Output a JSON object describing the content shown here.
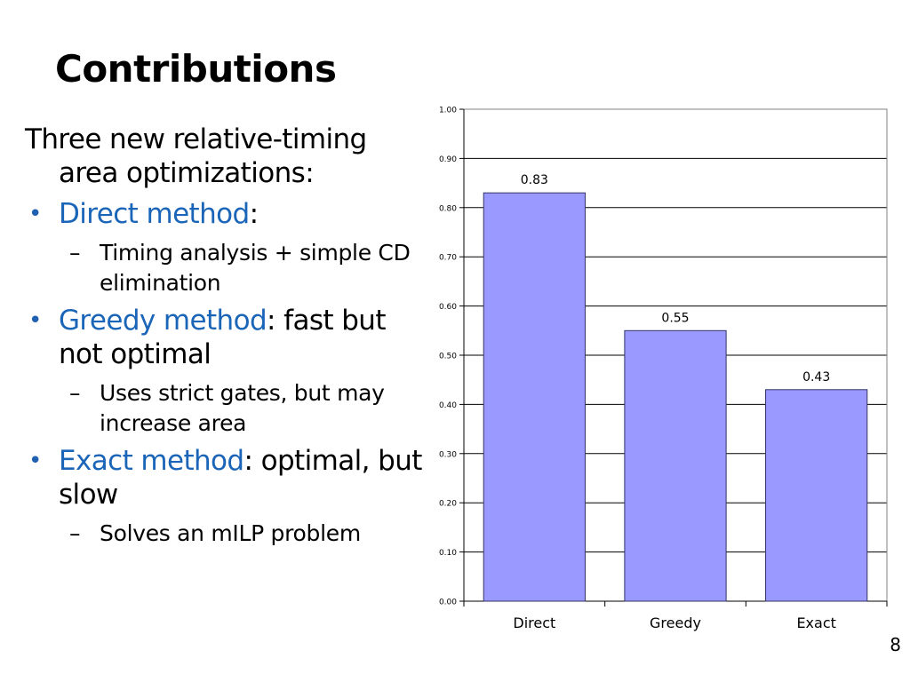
{
  "slide": {
    "title": "Contributions",
    "page_number": "8",
    "intro": "Three new relative-timing area optimizations:",
    "bullets": [
      {
        "label": "Direct method",
        "rest": ":",
        "sub": "Timing analysis + simple CD elimination"
      },
      {
        "label": "Greedy method",
        "rest": ": fast but not optimal",
        "sub": "Uses strict gates, but may increase area"
      },
      {
        "label": "Exact method",
        "rest": ": optimal, but slow",
        "sub": "Solves an mILP problem"
      }
    ],
    "bullet_symbol": "•",
    "sub_symbol": "–",
    "colors": {
      "method_label": "#1b65b8",
      "bar_fill": "#9999ff",
      "bar_stroke": "#333366"
    }
  },
  "chart_data": {
    "type": "bar",
    "categories": [
      "Direct",
      "Greedy",
      "Exact"
    ],
    "values": [
      0.83,
      0.55,
      0.43
    ],
    "data_labels": [
      "0.83",
      "0.55",
      "0.43"
    ],
    "yticks": [
      "0.00",
      "0.10",
      "0.20",
      "0.30",
      "0.40",
      "0.50",
      "0.60",
      "0.70",
      "0.80",
      "0.90",
      "1.00"
    ],
    "ylim": [
      0,
      1
    ],
    "grid": true,
    "legend": false,
    "title": "",
    "xlabel": "",
    "ylabel": ""
  }
}
